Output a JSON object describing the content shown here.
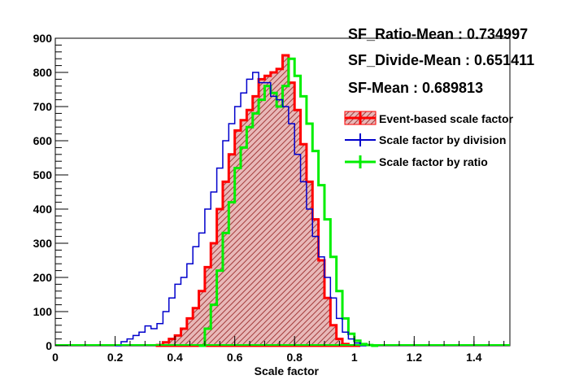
{
  "chart_data": {
    "type": "histogram",
    "xlabel": "Scale factor",
    "ylabel": "",
    "xlim": [
      0,
      1.52
    ],
    "ylim": [
      0,
      900
    ],
    "x_ticks": [
      0,
      0.2,
      0.4,
      0.6,
      0.8,
      1,
      1.2,
      1.4
    ],
    "x_tick_labels": [
      "0",
      "0.2",
      "0.4",
      "0.6",
      "0.8",
      "1",
      "1.2",
      "1.4"
    ],
    "y_ticks": [
      0,
      100,
      200,
      300,
      400,
      500,
      600,
      700,
      800,
      900
    ],
    "y_tick_labels": [
      "0",
      "100",
      "200",
      "300",
      "400",
      "500",
      "600",
      "700",
      "800",
      "900"
    ],
    "stats": [
      {
        "label": "SF_Ratio-Mean : 0.734997"
      },
      {
        "label": "SF_Divide-Mean : 0.651411"
      },
      {
        "label": "SF-Mean : 0.689813"
      }
    ],
    "legend": {
      "position": "top-right",
      "entries": [
        {
          "label": "Event-based scale factor",
          "color": "#ff0000",
          "style": "hatched-fill"
        },
        {
          "label": "Scale factor by division",
          "color": "#0000cc",
          "style": "line"
        },
        {
          "label": "Scale factor by ratio",
          "color": "#00ee00",
          "style": "line"
        }
      ]
    },
    "series": [
      {
        "color": "#0000cc",
        "x": [
          0.2,
          0.22,
          0.24,
          0.26,
          0.28,
          0.3,
          0.32,
          0.34,
          0.36,
          0.38,
          0.4,
          0.42,
          0.44,
          0.46,
          0.48,
          0.5,
          0.52,
          0.54,
          0.56,
          0.58,
          0.6,
          0.62,
          0.64,
          0.66,
          0.68,
          0.7,
          0.72,
          0.74,
          0.76,
          0.78,
          0.8,
          0.82,
          0.84,
          0.86,
          0.88,
          0.9,
          0.92,
          0.94,
          0.96,
          0.98,
          1.0,
          1.02
        ],
        "y": [
          0,
          12,
          20,
          30,
          40,
          58,
          50,
          65,
          100,
          140,
          180,
          200,
          240,
          290,
          330,
          400,
          450,
          520,
          600,
          650,
          700,
          740,
          780,
          800,
          770,
          770,
          730,
          720,
          700,
          650,
          560,
          480,
          400,
          320,
          260,
          200,
          140,
          80,
          40,
          20,
          8,
          0
        ]
      },
      {
        "color": "#ff0000",
        "x": [
          0.34,
          0.36,
          0.38,
          0.4,
          0.42,
          0.44,
          0.46,
          0.48,
          0.5,
          0.52,
          0.54,
          0.56,
          0.58,
          0.6,
          0.62,
          0.64,
          0.66,
          0.68,
          0.7,
          0.72,
          0.74,
          0.76,
          0.78,
          0.8,
          0.82,
          0.84,
          0.86,
          0.88,
          0.9,
          0.92,
          0.94,
          0.96,
          0.98,
          1.0
        ],
        "y": [
          2,
          10,
          20,
          30,
          50,
          80,
          110,
          160,
          230,
          300,
          400,
          480,
          560,
          630,
          660,
          690,
          730,
          780,
          790,
          800,
          810,
          850,
          770,
          690,
          590,
          480,
          370,
          250,
          140,
          60,
          20,
          5,
          1,
          0
        ]
      },
      {
        "color": "#00ee00",
        "x": [
          0.48,
          0.5,
          0.52,
          0.54,
          0.56,
          0.58,
          0.6,
          0.62,
          0.64,
          0.66,
          0.68,
          0.7,
          0.72,
          0.74,
          0.76,
          0.78,
          0.8,
          0.82,
          0.84,
          0.86,
          0.88,
          0.9,
          0.92,
          0.94,
          0.96,
          0.98,
          1.0,
          1.02,
          1.04,
          1.06
        ],
        "y": [
          0,
          50,
          120,
          220,
          330,
          420,
          520,
          580,
          640,
          680,
          720,
          760,
          740,
          700,
          760,
          840,
          790,
          730,
          650,
          570,
          470,
          370,
          260,
          160,
          80,
          35,
          15,
          5,
          2,
          0
        ]
      }
    ]
  }
}
